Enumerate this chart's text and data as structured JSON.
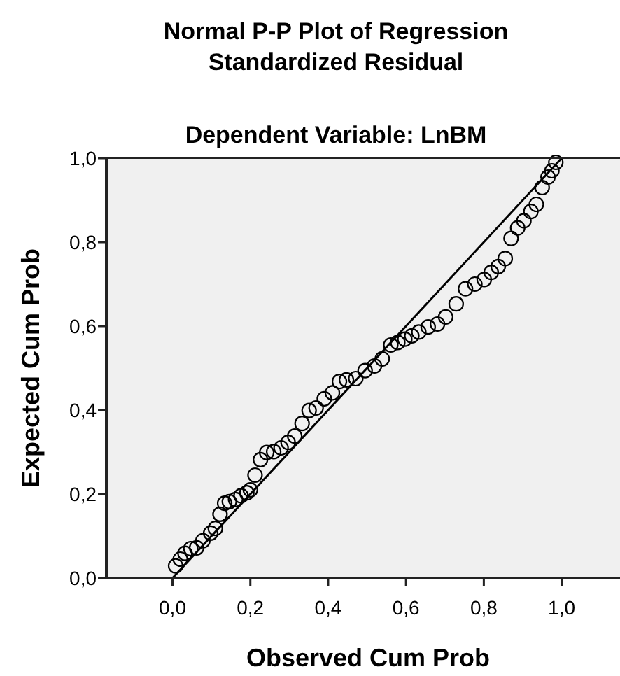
{
  "chart_data": {
    "type": "scatter",
    "title": "Normal P-P Plot of Regression Standardized Residual",
    "subtitle": "Dependent Variable: LnBM",
    "xlabel": "Observed Cum Prob",
    "ylabel": "Expected Cum Prob",
    "xlim": [
      -0.17,
      1.15
    ],
    "ylim": [
      0,
      1
    ],
    "xticks": [
      {
        "value": 0,
        "label": "0,0"
      },
      {
        "value": 0.2,
        "label": "0,2"
      },
      {
        "value": 0.4,
        "label": "0,4"
      },
      {
        "value": 0.6,
        "label": "0,6"
      },
      {
        "value": 0.8,
        "label": "0,8"
      },
      {
        "value": 1,
        "label": "1,0"
      }
    ],
    "yticks": [
      {
        "value": 0,
        "label": "0,0"
      },
      {
        "value": 0.2,
        "label": "0,2"
      },
      {
        "value": 0.4,
        "label": "0,4"
      },
      {
        "value": 0.6,
        "label": "0,6"
      },
      {
        "value": 0.8,
        "label": "0,8"
      },
      {
        "value": 1,
        "label": "1,0"
      }
    ],
    "grid": false,
    "series": [
      {
        "marker": "circle",
        "color": "#000000",
        "x": [
          0.008,
          0.02,
          0.032,
          0.047,
          0.062,
          0.078,
          0.098,
          0.11,
          0.122,
          0.134,
          0.146,
          0.162,
          0.176,
          0.191,
          0.2,
          0.212,
          0.226,
          0.242,
          0.26,
          0.279,
          0.297,
          0.314,
          0.333,
          0.351,
          0.369,
          0.39,
          0.411,
          0.429,
          0.447,
          0.471,
          0.495,
          0.519,
          0.539,
          0.561,
          0.579,
          0.597,
          0.615,
          0.633,
          0.657,
          0.681,
          0.702,
          0.729,
          0.753,
          0.777,
          0.801,
          0.819,
          0.837,
          0.855,
          0.87,
          0.887,
          0.903,
          0.921,
          0.935,
          0.95,
          0.965,
          0.975,
          0.985
        ],
        "values": [
          0.029,
          0.045,
          0.059,
          0.07,
          0.072,
          0.089,
          0.107,
          0.118,
          0.152,
          0.178,
          0.182,
          0.187,
          0.196,
          0.203,
          0.21,
          0.245,
          0.282,
          0.299,
          0.301,
          0.31,
          0.323,
          0.338,
          0.368,
          0.399,
          0.405,
          0.427,
          0.441,
          0.468,
          0.472,
          0.475,
          0.494,
          0.505,
          0.522,
          0.555,
          0.561,
          0.569,
          0.577,
          0.586,
          0.598,
          0.605,
          0.622,
          0.653,
          0.689,
          0.7,
          0.711,
          0.728,
          0.742,
          0.761,
          0.809,
          0.834,
          0.851,
          0.873,
          0.89,
          0.93,
          0.955,
          0.97,
          0.99
        ]
      },
      {
        "type": "line",
        "marker": "none",
        "color": "#000000",
        "x": [
          0,
          1
        ],
        "values": [
          0,
          1
        ]
      }
    ]
  }
}
